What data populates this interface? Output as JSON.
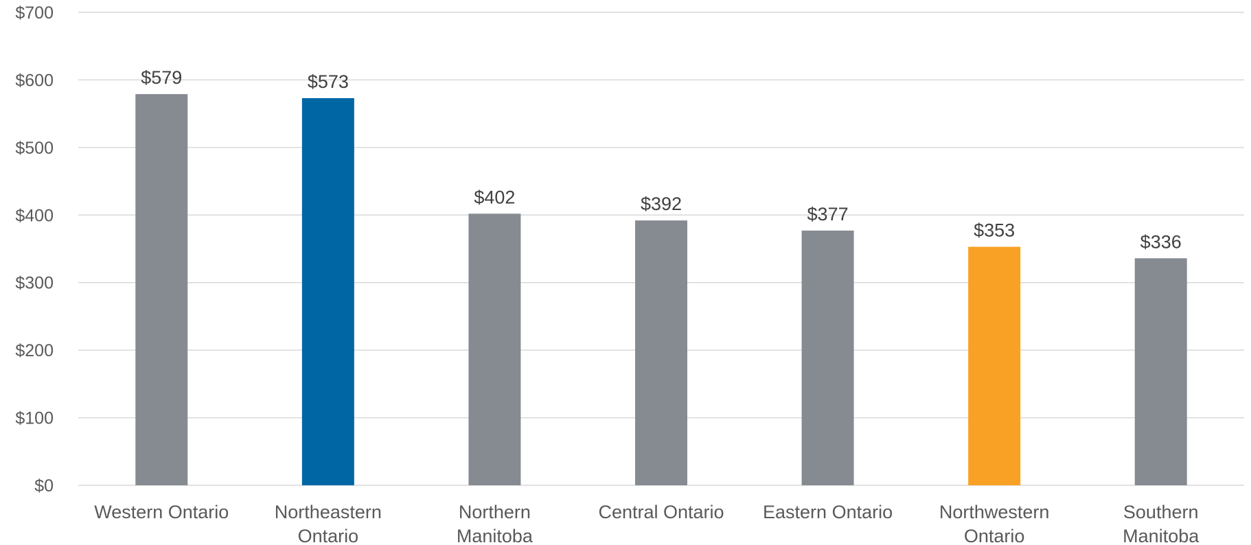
{
  "chart_data": {
    "type": "bar",
    "title": "",
    "xlabel": "",
    "ylabel": "",
    "ylim": [
      0,
      700
    ],
    "y_ticks": [
      0,
      100,
      200,
      300,
      400,
      500,
      600,
      700
    ],
    "y_tick_labels": [
      "$0",
      "$100",
      "$200",
      "$300",
      "$400",
      "$500",
      "$600",
      "$700"
    ],
    "grid": true,
    "legend": "none",
    "categories": [
      [
        "Western Ontario"
      ],
      [
        "Northeastern",
        "Ontario"
      ],
      [
        "Northern",
        "Manitoba"
      ],
      [
        "Central Ontario"
      ],
      [
        "Eastern Ontario"
      ],
      [
        "Northwestern",
        "Ontario"
      ],
      [
        "Southern",
        "Manitoba"
      ]
    ],
    "values": [
      579,
      573,
      402,
      392,
      377,
      353,
      336
    ],
    "data_labels": [
      "$579",
      "$573",
      "$402",
      "$392",
      "$377",
      "$353",
      "$336"
    ],
    "colors": [
      "#868b92",
      "#0066a4",
      "#868b92",
      "#868b92",
      "#868b92",
      "#f9a125",
      "#868b92"
    ]
  }
}
